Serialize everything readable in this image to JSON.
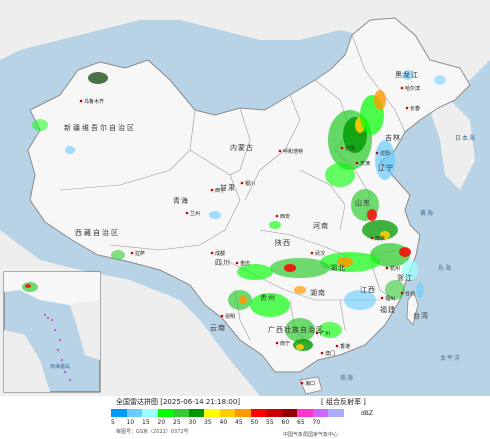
{
  "map": {
    "region_labels": [
      {
        "name": "黑龙江",
        "kind": "region"
      },
      {
        "name": "新疆维吾尔自治区",
        "kind": "region"
      },
      {
        "name": "内蒙古",
        "kind": "region"
      },
      {
        "name": "西藏自治区",
        "kind": "region"
      },
      {
        "name": "青海",
        "kind": "region"
      },
      {
        "name": "甘肃",
        "kind": "region"
      },
      {
        "name": "四川",
        "kind": "region"
      },
      {
        "name": "云南",
        "kind": "region"
      },
      {
        "name": "广西壮族自治区",
        "kind": "region"
      },
      {
        "name": "湖南",
        "kind": "region"
      },
      {
        "name": "江西",
        "kind": "region"
      },
      {
        "name": "福建",
        "kind": "region"
      },
      {
        "name": "台湾",
        "kind": "region"
      },
      {
        "name": "浙江",
        "kind": "region"
      },
      {
        "name": "贵州",
        "kind": "region"
      },
      {
        "name": "河南",
        "kind": "region"
      },
      {
        "name": "山东",
        "kind": "region"
      },
      {
        "name": "吉林",
        "kind": "region"
      },
      {
        "name": "辽宁",
        "kind": "region"
      },
      {
        "name": "陕西",
        "kind": "region"
      },
      {
        "name": "湖北",
        "kind": "region"
      }
    ],
    "city_labels": [
      "乌鲁木齐",
      "哈尔滨",
      "长春",
      "呼和浩特",
      "北京",
      "天津",
      "沈阳",
      "西宁",
      "兰州",
      "银川",
      "西安",
      "成都",
      "重庆",
      "拉萨",
      "武汉",
      "南京",
      "杭州",
      "福州",
      "广州",
      "南宁",
      "昆明",
      "香港",
      "澳门",
      "台北",
      "海口"
    ],
    "sea_labels": [
      "日本海",
      "黄海",
      "东海",
      "太平洋",
      "南海"
    ],
    "inset_labels": [
      "南海诸岛"
    ],
    "colors": {
      "land": "#f7f7f7",
      "sea": "#b9d3e6",
      "border": "#8a8a8a"
    }
  },
  "legend": {
    "title": "全国雷达拼图 [2025-06-14 21:18:00]",
    "product": "[ 组合反射率 ]",
    "unit": "dBZ",
    "ticks": [
      "5",
      "10",
      "15",
      "20",
      "25",
      "30",
      "35",
      "40",
      "45",
      "50",
      "55",
      "60",
      "65",
      "70"
    ],
    "colors": [
      "#0099ff",
      "#66ccff",
      "#99ffff",
      "#00ff00",
      "#33cc33",
      "#009900",
      "#ffff00",
      "#ffcc00",
      "#ff9900",
      "#ff0000",
      "#cc0000",
      "#990000",
      "#ff33cc",
      "#cc66ff",
      "#aaaaff"
    ],
    "footer_left": "审图号：GS京（2022）0372号",
    "footer_right": "中国气象局国家气象中心"
  }
}
